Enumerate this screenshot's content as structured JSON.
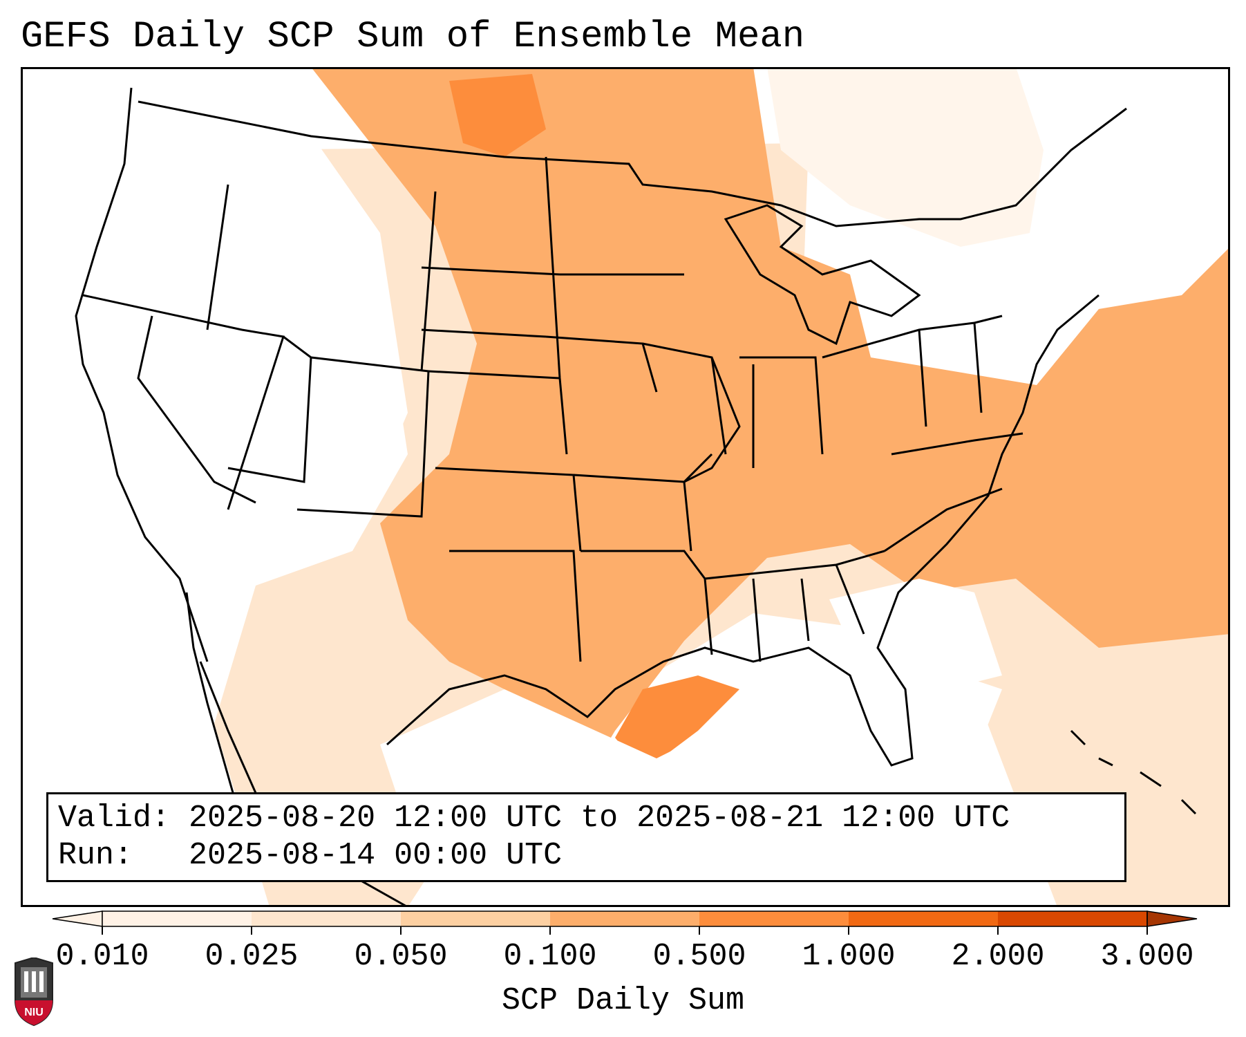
{
  "title": "GEFS Daily SCP Sum of Ensemble Mean",
  "info": {
    "valid_line": "Valid: 2025-08-20 12:00 UTC to 2025-08-21 12:00 UTC",
    "run_line": "Run:   2025-08-14 00:00 UTC"
  },
  "colorbar": {
    "label": "SCP Daily Sum",
    "ticks": [
      "0.010",
      "0.025",
      "0.050",
      "0.100",
      "0.500",
      "1.000",
      "2.000",
      "3.000"
    ],
    "colors": [
      "#fff2e6",
      "#fee6ce",
      "#fdd0a2",
      "#fdae6b",
      "#fd8d3c",
      "#f16913",
      "#d94801",
      "#a63603"
    ],
    "extend": "both"
  },
  "logo": {
    "text": "NIU",
    "colors": {
      "shield": "#c8102e",
      "building": "#555555"
    }
  },
  "map": {
    "projection": "lambert-conformal",
    "region": "CONUS",
    "field_colors": {
      "light": "#fee6ce",
      "medium": "#fdd0a2",
      "heavy": "#fdae6b",
      "strong": "#fd8d3c"
    }
  }
}
